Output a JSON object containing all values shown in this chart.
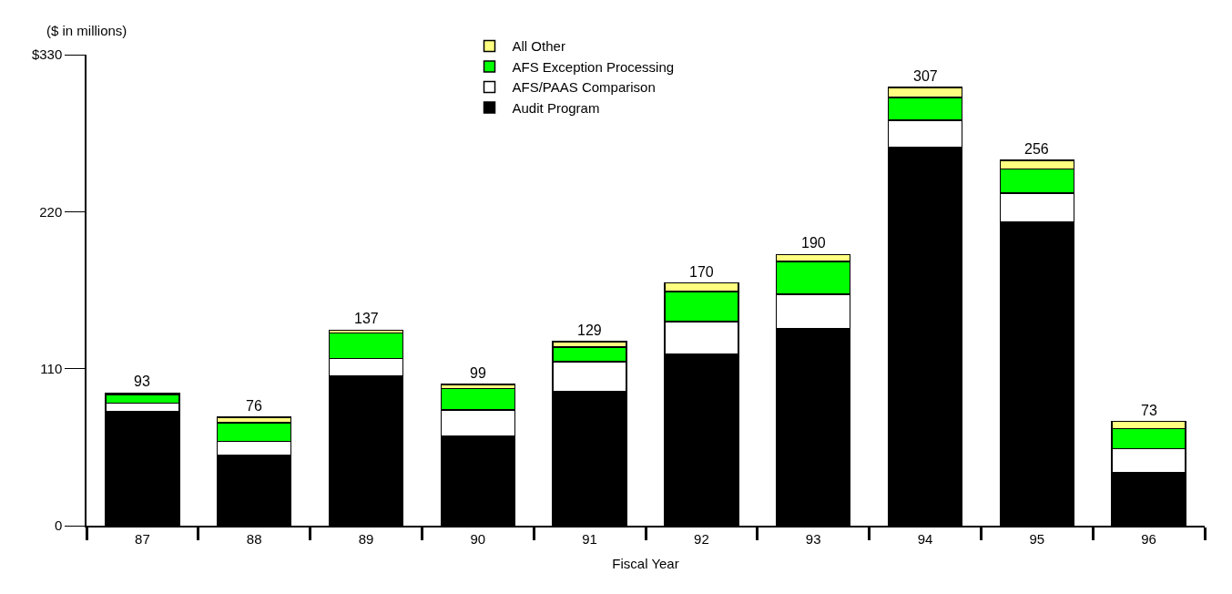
{
  "chart_data": {
    "type": "bar",
    "stacked": true,
    "ylabel": "($ in millions)",
    "xlabel": "Fiscal Year",
    "categories": [
      "87",
      "88",
      "89",
      "90",
      "91",
      "92",
      "93",
      "94",
      "95",
      "96"
    ],
    "series": [
      {
        "name": "Audit Program",
        "color": "#000000",
        "values": [
          80,
          49,
          105,
          63,
          94,
          120,
          138,
          265,
          213,
          37
        ]
      },
      {
        "name": "AFS/PAAS Comparison",
        "color": "#ffffff",
        "values": [
          6,
          10,
          12,
          18,
          21,
          23,
          24,
          19,
          20,
          17
        ]
      },
      {
        "name": "AFS Exception Processing",
        "color": "#00ff00",
        "values": [
          6,
          13,
          18,
          15,
          10,
          21,
          23,
          16,
          17,
          14
        ]
      },
      {
        "name": "All Other",
        "color": "#ffff80",
        "values": [
          1,
          4,
          2,
          3,
          4,
          6,
          5,
          7,
          6,
          5
        ]
      }
    ],
    "totals": [
      "93",
      "76",
      "137",
      "99",
      "129",
      "170",
      "190",
      "307",
      "256",
      "73"
    ],
    "ylim": [
      0,
      330
    ],
    "yticks": [
      0,
      110,
      220,
      {
        "value": 330,
        "label": "$330"
      }
    ],
    "legend": "top"
  }
}
